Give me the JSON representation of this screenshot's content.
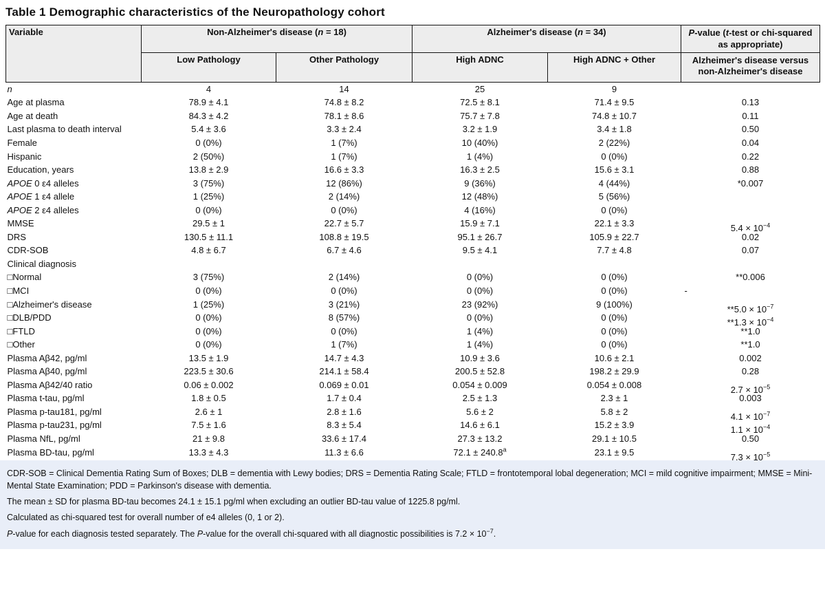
{
  "title": "Table 1 Demographic characteristics of the Neuropathology cohort",
  "colors": {
    "header_bg": "#ededed",
    "footnote_bg": "#e9eef8",
    "border": "#141414",
    "text": "#111111"
  },
  "table": {
    "header": {
      "variable": "Variable",
      "group_non_ad": "Non-Alzheimer's disease (~n~ = 18)",
      "group_ad": "Alzheimer's disease (~n~ = 34)",
      "pvalue": "~P~-value (~t~-test or chi-squared as appropriate)",
      "sub": [
        "Low Pathology",
        "Other Pathology",
        "High ADNC",
        "High ADNC + Other",
        "Alzheimer's disease versus non-Alzheimer's disease"
      ]
    },
    "rows": [
      {
        "label": "~n~",
        "cells": [
          "4",
          "14",
          "25",
          "9",
          ""
        ]
      },
      {
        "label": "Age at plasma",
        "cells": [
          "78.9 ± 4.1",
          "74.8 ± 8.2",
          "72.5 ± 8.1",
          "71.4 ± 9.5",
          "0.13"
        ]
      },
      {
        "label": "Age at death",
        "cells": [
          "84.3 ± 4.2",
          "78.1 ± 8.6",
          "75.7 ± 7.8",
          "74.8 ± 10.7",
          "0.11"
        ]
      },
      {
        "label": "Last plasma to death interval",
        "cells": [
          "5.4 ± 3.6",
          "3.3 ± 2.4",
          "3.2 ± 1.9",
          "3.4 ± 1.8",
          "0.50"
        ]
      },
      {
        "label": "Female",
        "cells": [
          "0 (0%)",
          "1 (7%)",
          "10 (40%)",
          "2 (22%)",
          "0.04"
        ]
      },
      {
        "label": "Hispanic",
        "cells": [
          "2 (50%)",
          "1 (7%)",
          "1 (4%)",
          "0 (0%)",
          "0.22"
        ]
      },
      {
        "label": "Education, years",
        "cells": [
          "13.8 ± 2.9",
          "16.6 ± 3.3",
          "16.3 ± 2.5",
          "15.6 ± 3.1",
          "0.88"
        ]
      },
      {
        "label": "~APOE~ 0 ε4 alleles",
        "cells": [
          "3 (75%)",
          "12 (86%)",
          "9 (36%)",
          "4 (44%)",
          "*0.007"
        ]
      },
      {
        "label": "~APOE~ 1 ε4 allele",
        "cells": [
          "1 (25%)",
          "2 (14%)",
          "12 (48%)",
          "5 (56%)",
          ""
        ]
      },
      {
        "label": "~APOE~ 2 ε4 alleles",
        "cells": [
          "0 (0%)",
          "0 (0%)",
          "4 (16%)",
          "0 (0%)",
          ""
        ]
      },
      {
        "label": "MMSE",
        "cells": [
          "29.5 ± 1",
          "22.7 ± 5.7",
          "15.9 ± 7.1",
          "22.1 ± 3.3",
          "5.4 × 10^−4^"
        ]
      },
      {
        "label": "DRS",
        "cells": [
          "130.5 ± 11.1",
          "108.8 ± 19.5",
          "95.1 ± 26.7",
          "105.9 ± 22.7",
          "0.02"
        ]
      },
      {
        "label": "CDR-SOB",
        "cells": [
          "4.8 ± 6.7",
          "6.7 ± 4.6",
          "9.5 ± 4.1",
          "7.7 ± 4.8",
          "0.07"
        ]
      },
      {
        "label": "Clinical diagnosis",
        "cells": [
          "",
          "",
          "",
          "",
          ""
        ]
      },
      {
        "label": "□Normal",
        "cells": [
          "3 (75%)",
          "2 (14%)",
          "0 (0%)",
          "0 (0%)",
          "**0.006"
        ]
      },
      {
        "label": "□MCI",
        "cells": [
          "0 (0%)",
          "0 (0%)",
          "0 (0%)",
          "0 (0%)",
          "-"
        ]
      },
      {
        "label": "□Alzheimer's disease",
        "cells": [
          "1 (25%)",
          "3 (21%)",
          "23 (92%)",
          "9 (100%)",
          "**5.0 × 10^−7^"
        ]
      },
      {
        "label": "□DLB/PDD",
        "cells": [
          "0 (0%)",
          "8 (57%)",
          "0 (0%)",
          "0 (0%)",
          "**1.3 × 10^−4^"
        ]
      },
      {
        "label": "□FTLD",
        "cells": [
          "0 (0%)",
          "0 (0%)",
          "1 (4%)",
          "0 (0%)",
          "**1.0"
        ]
      },
      {
        "label": "□Other",
        "cells": [
          "0 (0%)",
          "1 (7%)",
          "1 (4%)",
          "0 (0%)",
          "**1.0"
        ]
      },
      {
        "label": "Plasma Aβ42, pg/ml",
        "cells": [
          "13.5 ± 1.9",
          "14.7 ± 4.3",
          "10.9 ± 3.6",
          "10.6 ± 2.1",
          "0.002"
        ]
      },
      {
        "label": "Plasma Aβ40, pg/ml",
        "cells": [
          "223.5 ± 30.6",
          "214.1 ± 58.4",
          "200.5 ± 52.8",
          "198.2 ± 29.9",
          "0.28"
        ]
      },
      {
        "label": "Plasma Aβ42/40 ratio",
        "cells": [
          "0.06 ± 0.002",
          "0.069 ± 0.01",
          "0.054 ± 0.009",
          "0.054 ± 0.008",
          "2.7 × 10^−5^"
        ]
      },
      {
        "label": "Plasma t-tau, pg/ml",
        "cells": [
          "1.8 ± 0.5",
          "1.7 ± 0.4",
          "2.5 ± 1.3",
          "2.3 ± 1",
          "0.003"
        ]
      },
      {
        "label": "Plasma p-tau181, pg/ml",
        "cells": [
          "2.6 ± 1",
          "2.8 ± 1.6",
          "5.6 ± 2",
          "5.8 ± 2",
          "4.1 × 10^−7^"
        ]
      },
      {
        "label": "Plasma p-tau231, pg/ml",
        "cells": [
          "7.5 ± 1.6",
          "8.3 ± 5.4",
          "14.6 ± 6.1",
          "15.2 ± 3.9",
          "1.1 × 10^−4^"
        ]
      },
      {
        "label": "Plasma NfL, pg/ml",
        "cells": [
          "21 ± 9.8",
          "33.6 ± 17.4",
          "27.3 ± 13.2",
          "29.1 ± 10.5",
          "0.50"
        ]
      },
      {
        "label": "Plasma BD-tau, pg/ml",
        "cells": [
          "13.3 ± 4.3",
          "11.3 ± 6.6",
          "72.1 ± 240.8^a^",
          "23.1 ± 9.5",
          "7.3 × 10^−5^"
        ]
      }
    ]
  },
  "footnotes": [
    "CDR-SOB = Clinical Dementia Rating Sum of Boxes; DLB = dementia with Lewy bodies; DRS = Dementia Rating Scale; FTLD = frontotemporal lobal degeneration; MCI = mild cognitive impairment; MMSE = Mini-Mental State Examination; PDD = Parkinson's disease with dementia.",
    "The mean ± SD for plasma BD-tau becomes 24.1 ± 15.1 pg/ml when excluding an outlier BD-tau value of 1225.8 pg/ml.",
    "Calculated as chi-squared test for overall number of e4 alleles (0, 1 or 2).",
    "~P~-value for each diagnosis tested separately. The ~P~-value for the overall chi-squared with all diagnostic possibilities is 7.2 × 10^−7^."
  ]
}
